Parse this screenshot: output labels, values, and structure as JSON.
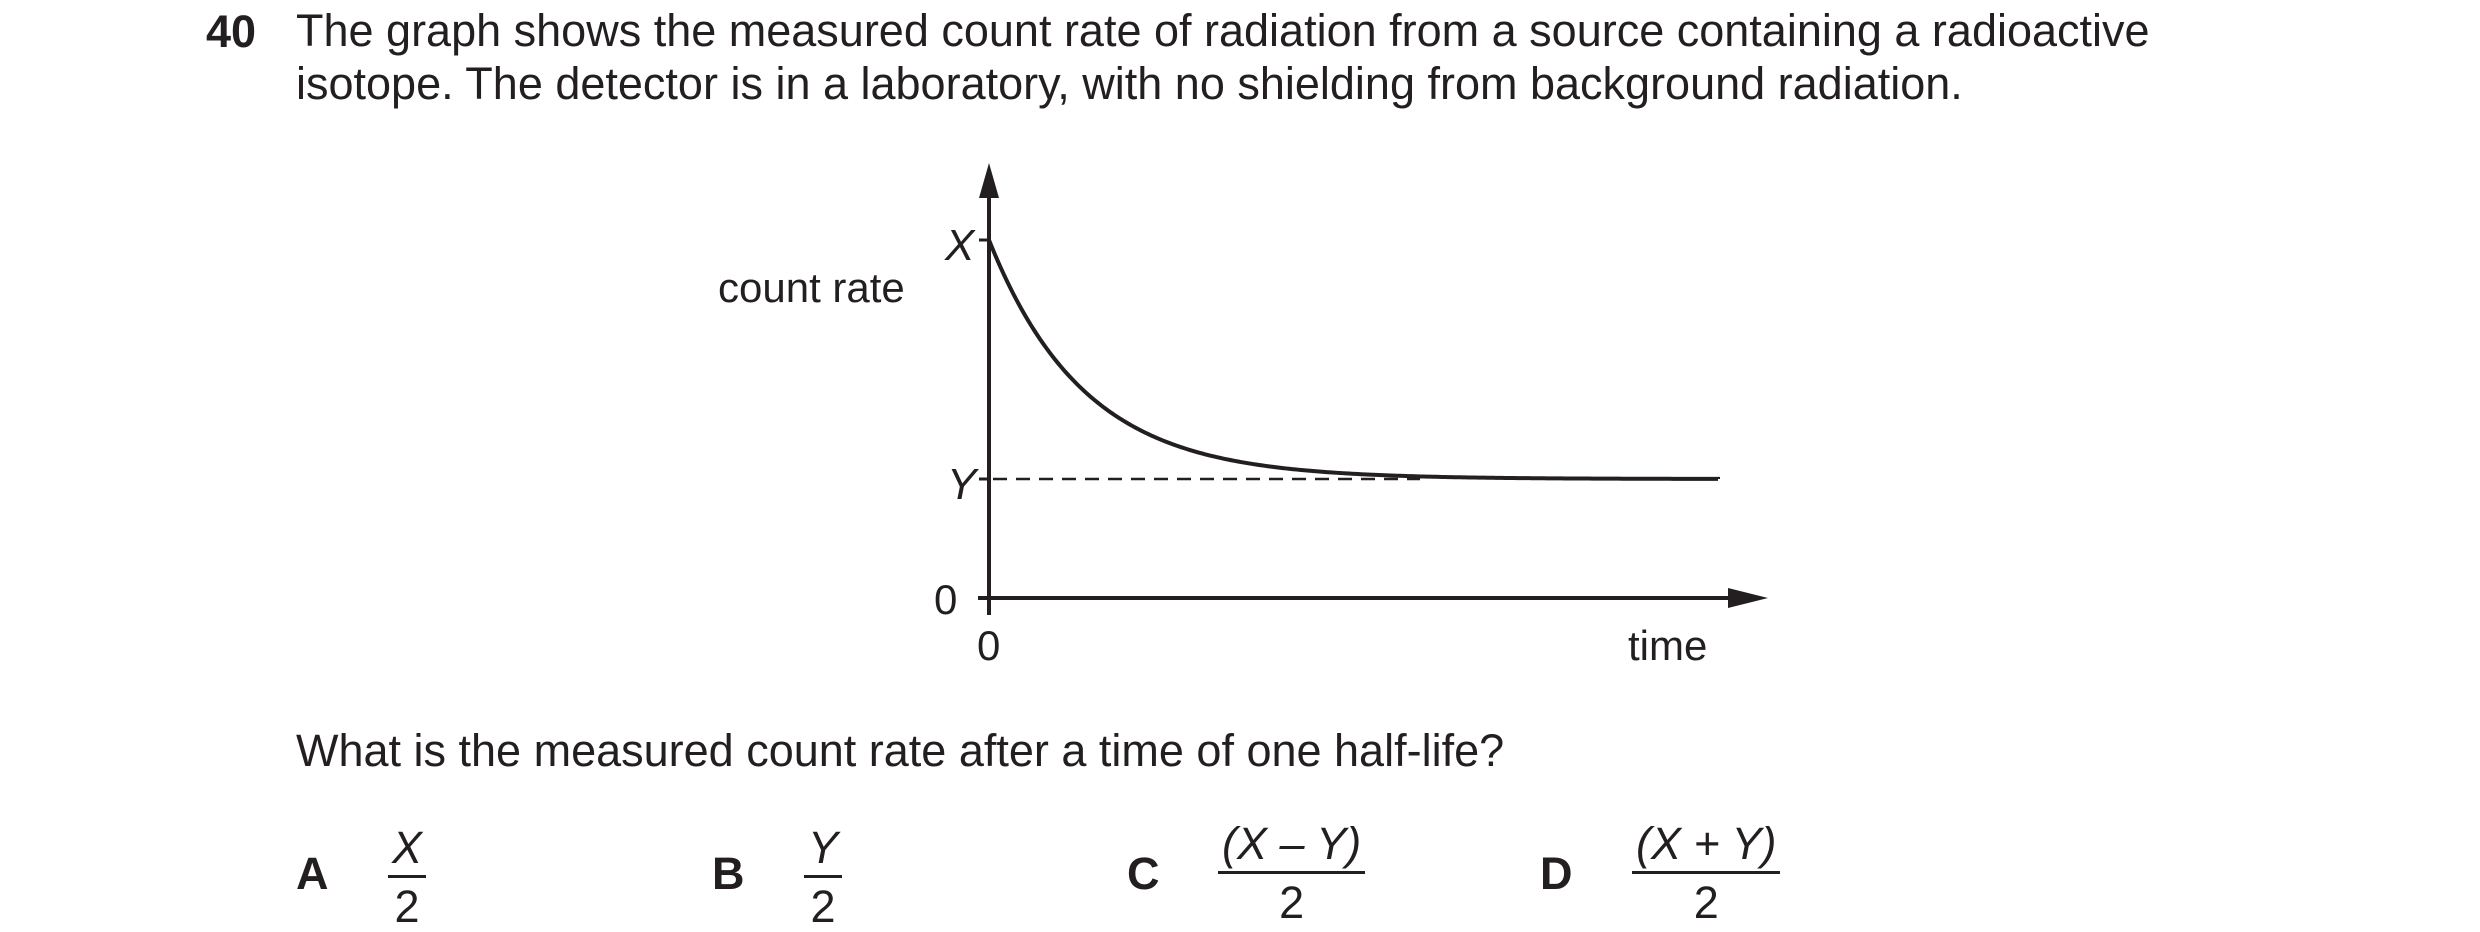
{
  "question": {
    "number": "40",
    "stem_line1": "The graph shows the measured count rate of radiation from a source containing a radioactive",
    "stem_line2": "isotope. The detector is in a laboratory, with no shielding from background radiation.",
    "prompt": "What is the measured count rate after a time of one half-life?"
  },
  "graph": {
    "y_axis_label": "count rate",
    "x_axis_label": "time",
    "y_marks": [
      "X",
      "Y",
      "0"
    ],
    "x_origin_label": "0",
    "curve": "exponential decay from X levelling off at Y",
    "dashed_line_at": "Y"
  },
  "options": [
    {
      "letter": "A",
      "numerator": "X",
      "denominator": "2"
    },
    {
      "letter": "B",
      "numerator": "Y",
      "denominator": "2"
    },
    {
      "letter": "C",
      "numerator": "(X – Y)",
      "denominator": "2"
    },
    {
      "letter": "D",
      "numerator": "(X + Y)",
      "denominator": "2"
    }
  ]
}
